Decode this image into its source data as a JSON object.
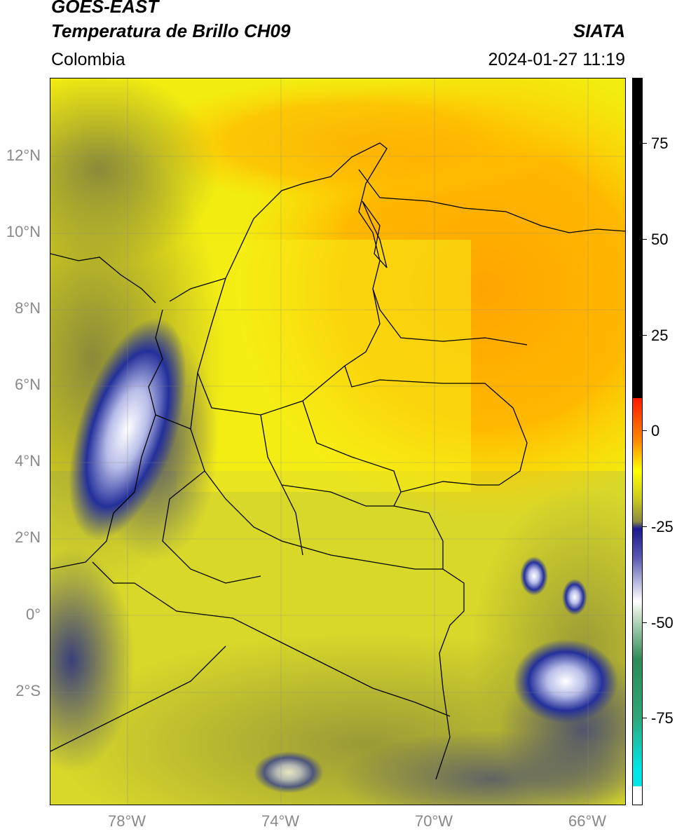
{
  "header": {
    "satellite": "GOES-EAST",
    "product": "Temperatura de Brillo CH09",
    "organization": "SIATA",
    "region": "Colombia",
    "datetime": "2024-01-27 11:19"
  },
  "map": {
    "lat_labels": [
      "12°N",
      "10°N",
      "8°N",
      "6°N",
      "4°N",
      "2°N",
      "0°",
      "2°S"
    ],
    "lon_labels": [
      "78°W",
      "74°W",
      "70°W",
      "66°W"
    ],
    "extent": {
      "lon_min": -80,
      "lon_max": -65,
      "lat_min": -5,
      "lat_max": 14
    }
  },
  "colorbar": {
    "ticks": [
      "75",
      "50",
      "25",
      "0",
      "-25",
      "-50",
      "-75"
    ],
    "range": [
      -97,
      90
    ],
    "colors": [
      "#ffffff",
      "#00e5e5",
      "#2e8b57",
      "#ffffff",
      "#1a1a8c",
      "#c8c820",
      "#ffff00",
      "#ffaa00",
      "#ff0000",
      "#000000"
    ]
  }
}
